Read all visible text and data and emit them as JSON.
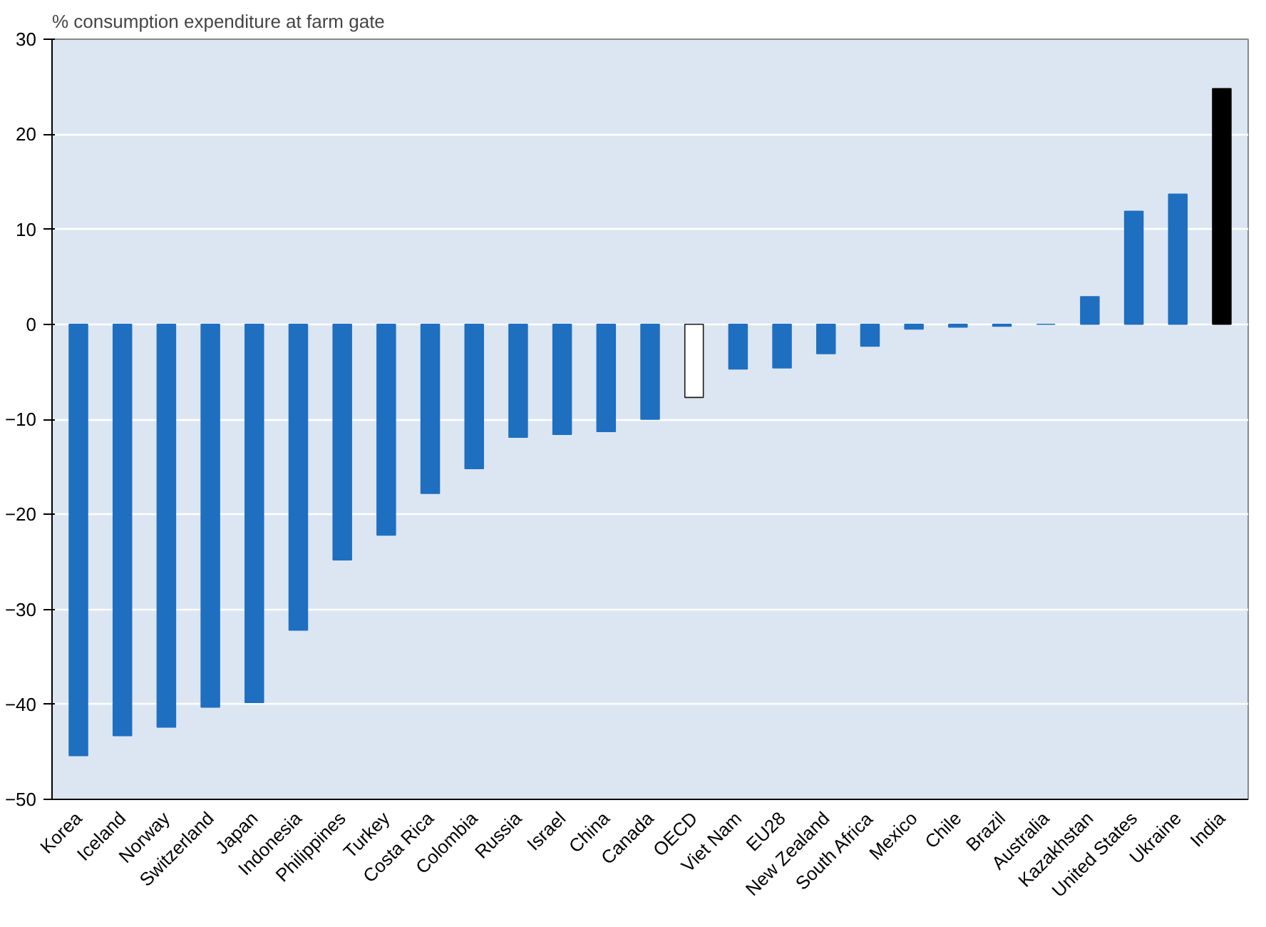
{
  "chart_data": {
    "type": "bar",
    "title": "% consumption expenditure at farm gate",
    "categories": [
      "Korea",
      "Iceland",
      "Norway",
      "Switzerland",
      "Japan",
      "Indonesia",
      "Philippines",
      "Turkey",
      "Costa Rica",
      "Colombia",
      "Russia",
      "Israel",
      "China",
      "Canada",
      "OECD",
      "Viet Nam",
      "EU28",
      "New Zealand",
      "South Africa",
      "Mexico",
      "Chile",
      "Brazil",
      "Australia",
      "Kazakhstan",
      "United States",
      "Ukraine",
      "India"
    ],
    "values": [
      -45.4,
      -43.3,
      -42.4,
      -40.3,
      -39.8,
      -32.2,
      -24.8,
      -22.2,
      -17.8,
      -15.2,
      -11.9,
      -11.6,
      -11.3,
      -10,
      -7.7,
      -4.7,
      -4.6,
      -3.1,
      -2.3,
      -0.5,
      -0.3,
      -0.2,
      0,
      2.9,
      11.9,
      13.7,
      24.8
    ],
    "colors": [
      "#1f6fc0",
      "#1f6fc0",
      "#1f6fc0",
      "#1f6fc0",
      "#1f6fc0",
      "#1f6fc0",
      "#1f6fc0",
      "#1f6fc0",
      "#1f6fc0",
      "#1f6fc0",
      "#1f6fc0",
      "#1f6fc0",
      "#1f6fc0",
      "#1f6fc0",
      "#ffffff",
      "#1f6fc0",
      "#1f6fc0",
      "#1f6fc0",
      "#1f6fc0",
      "#1f6fc0",
      "#1f6fc0",
      "#1f6fc0",
      "#1f6fc0",
      "#1f6fc0",
      "#1f6fc0",
      "#1f6fc0",
      "#000000"
    ],
    "ylim": [
      -50,
      30
    ],
    "yticks": [
      -50,
      -40,
      -30,
      -20,
      -10,
      0,
      10,
      20,
      30
    ],
    "grid": "y"
  }
}
